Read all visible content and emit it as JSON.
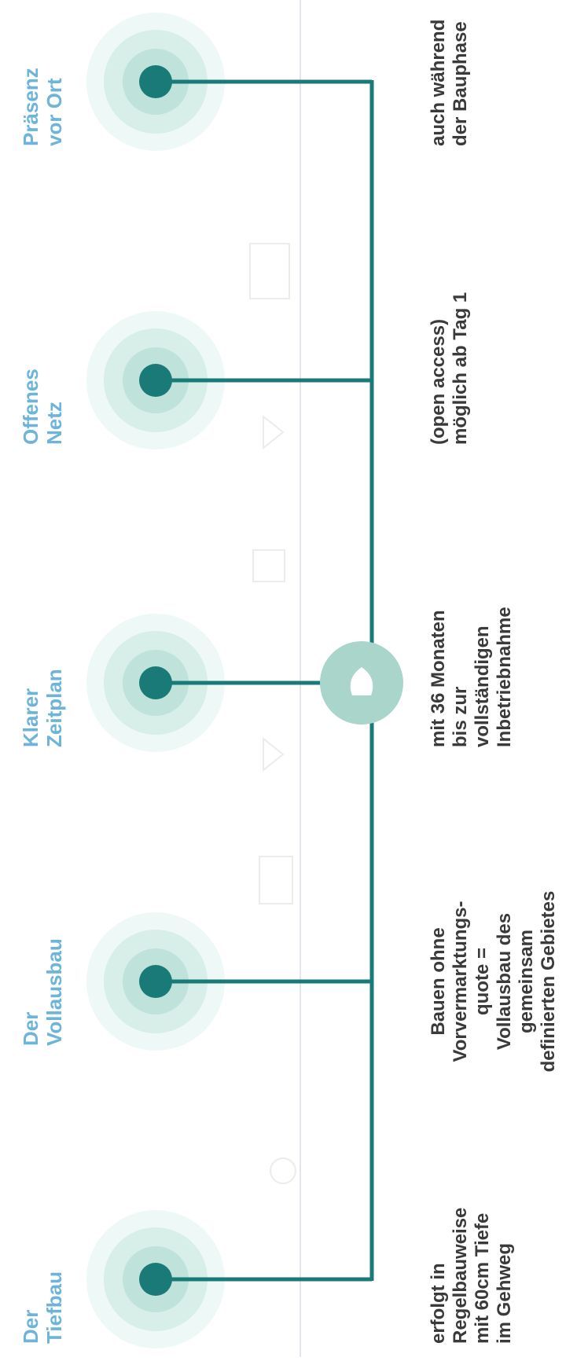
{
  "items": [
    {
      "title": [
        "Präsenz",
        "vor Ort"
      ],
      "description": [
        "auch während",
        "der Bauphase"
      ]
    },
    {
      "title": [
        "Offenes",
        "Netz"
      ],
      "description": [
        "(open access)",
        "möglich ab Tag 1"
      ]
    },
    {
      "title": [
        "Klarer",
        "Zeitplan"
      ],
      "description": [
        "mit 36 Monaten",
        "bis zur",
        "vollständigen",
        "Inbetriebnahme"
      ]
    },
    {
      "title": [
        "Der",
        "Vollausbau"
      ],
      "description": [
        "Bauen ohne",
        "Vorvermarktungs-",
        "quote =",
        "Vollausbau des",
        "gemeinsam",
        "definierten Gebietes"
      ]
    },
    {
      "title": [
        "Der",
        "Tiefbau"
      ],
      "description": [
        "erfolgt in",
        "Regelbauweise",
        "mit 60cm Tiefe",
        "im Gehweg"
      ]
    }
  ]
}
